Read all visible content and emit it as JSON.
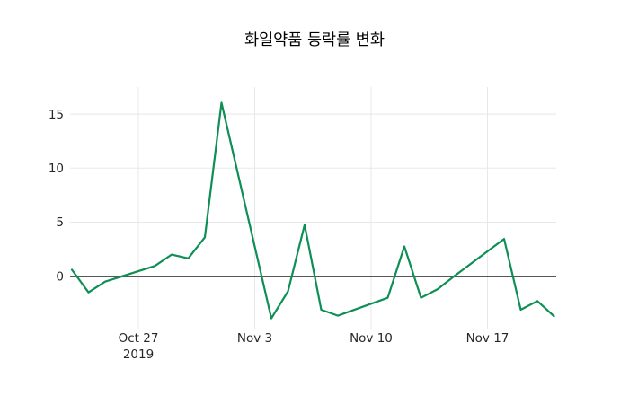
{
  "chart_data": {
    "type": "line",
    "title": "화일약품 등락률 변화",
    "xlabel": "",
    "ylabel": "",
    "grid": true,
    "legend": "none",
    "background": "#ffffff",
    "line_color": "#0e8f55",
    "zero_line_color": "#3f3f3f",
    "grid_color": "#e8e8e8",
    "text_color": "#262626",
    "y_ticks": [
      0,
      5,
      10,
      15
    ],
    "ylim": [
      -4.35,
      17.5
    ],
    "x_range": {
      "start": "2019-10-23",
      "end": "2019-11-21"
    },
    "x_tick_labels": [
      {
        "line1": "Oct 27",
        "line2": "2019",
        "date": "2019-10-27"
      },
      {
        "line1": "Nov 3",
        "line2": "",
        "date": "2019-11-03"
      },
      {
        "line1": "Nov 10",
        "line2": "",
        "date": "2019-11-10"
      },
      {
        "line1": "Nov 17",
        "line2": "",
        "date": "2019-11-17"
      }
    ],
    "series": [
      {
        "name": "등락률",
        "points": [
          {
            "date": "2019-10-23",
            "value": 0.6
          },
          {
            "date": "2019-10-24",
            "value": -1.5
          },
          {
            "date": "2019-10-25",
            "value": -0.5
          },
          {
            "date": "2019-10-28",
            "value": 0.95
          },
          {
            "date": "2019-10-29",
            "value": 2.0
          },
          {
            "date": "2019-10-30",
            "value": 1.65
          },
          {
            "date": "2019-10-31",
            "value": 3.6
          },
          {
            "date": "2019-11-01",
            "value": 16.05
          },
          {
            "date": "2019-11-04",
            "value": -3.9
          },
          {
            "date": "2019-11-05",
            "value": -1.4
          },
          {
            "date": "2019-11-06",
            "value": 4.75
          },
          {
            "date": "2019-11-07",
            "value": -3.1
          },
          {
            "date": "2019-11-08",
            "value": -3.65
          },
          {
            "date": "2019-11-11",
            "value": -2.0
          },
          {
            "date": "2019-11-12",
            "value": 2.75
          },
          {
            "date": "2019-11-13",
            "value": -2.0
          },
          {
            "date": "2019-11-14",
            "value": -1.2
          },
          {
            "date": "2019-11-15",
            "value": 0.0
          },
          {
            "date": "2019-11-18",
            "value": 3.45
          },
          {
            "date": "2019-11-19",
            "value": -3.1
          },
          {
            "date": "2019-11-20",
            "value": -2.3
          },
          {
            "date": "2019-11-21",
            "value": -3.7
          }
        ]
      }
    ]
  }
}
